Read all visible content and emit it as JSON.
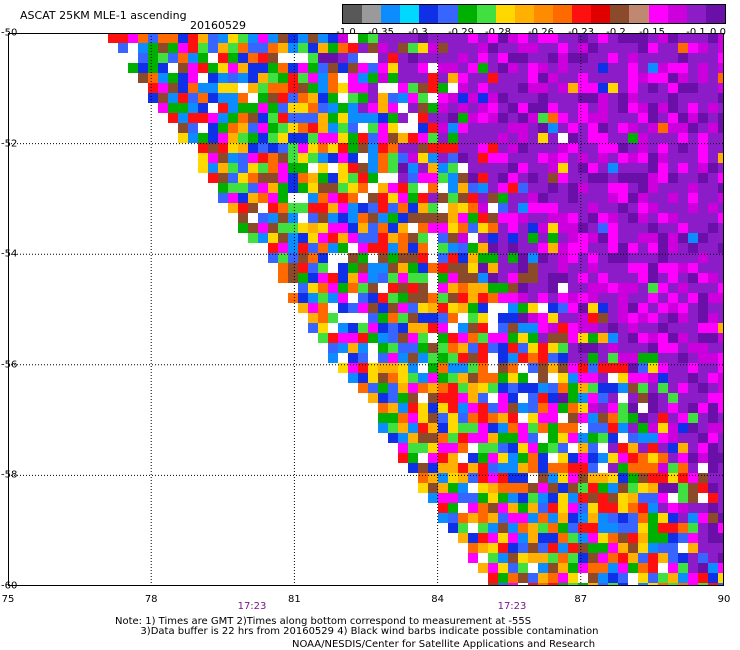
{
  "title": "ASCAT 25KM MLE-1 ascending",
  "date": "20160529",
  "colorbar": {
    "colors": [
      "#585858",
      "#9a9a9a",
      "#0c8cff",
      "#00d8ff",
      "#1030e8",
      "#3864ff",
      "#00b000",
      "#40e040",
      "#ffd800",
      "#ffb000",
      "#ff8c00",
      "#ff6a00",
      "#ff1010",
      "#e00000",
      "#8b4a2a",
      "#c08870",
      "#ff00ff",
      "#cc00dd",
      "#8c1cc8",
      "#6a10a8"
    ],
    "labels": [
      "-1.0",
      "-0.35",
      "-0.3",
      "-0.29",
      "-0.28",
      "-0.26",
      "-0.23",
      "-0.2",
      "-0.15",
      "-0.1",
      "0.0"
    ]
  },
  "axes": {
    "lat_labels": [
      "-50",
      "-52",
      "-54",
      "-56",
      "-58",
      "-60"
    ],
    "lon_labels": [
      "75",
      "78",
      "81",
      "84",
      "87",
      "90"
    ],
    "time_labels": [
      "17:23",
      "17:23"
    ]
  },
  "map_data": {
    "lat_range": [
      -60,
      -50
    ],
    "lon_range": [
      75,
      90
    ],
    "swath_edge_left": [
      [
        77.2,
        -50
      ],
      [
        85.2,
        -60
      ]
    ],
    "color_levels": {
      "noisy": [
        "#ff1010",
        "#ff6a00",
        "#ffb000",
        "#ffd800",
        "#1030e8",
        "#3864ff",
        "#00b000",
        "#40e040",
        "#0c8cff",
        "#8b4a2a",
        "#ffffff",
        "#ff00ff"
      ],
      "calm": [
        "#8c1cc8",
        "#8c1cc8",
        "#8c1cc8",
        "#6a10a8",
        "#cc00dd",
        "#ff00ff"
      ]
    }
  },
  "note": "Note: 1) Times are GMT 2)Times along bottom correspond to measurement at -55S\n        3)Data buffer is 22 hrs from 20160529 4) Black wind barbs indicate possible contamination",
  "credit": "NOAA/NESDIS/Center for Satellite Applications and Research"
}
